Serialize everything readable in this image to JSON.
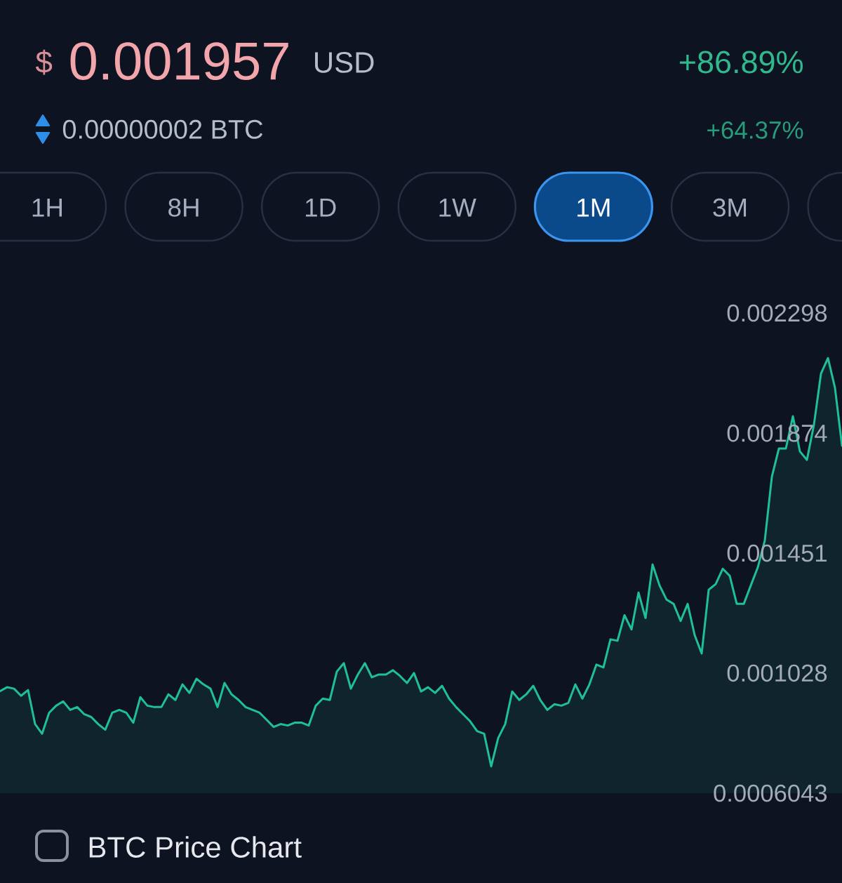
{
  "chart_data": {
    "type": "area",
    "title": "0.001957",
    "annotations": [
      "$",
      "USD",
      "+86.89%",
      "0.00000002 BTC",
      "+64.37%",
      "1H",
      "8H",
      "1D",
      "1W",
      "1M",
      "3M",
      "BTC Price Chart"
    ],
    "categories": [
      null,
      null,
      null,
      null,
      null,
      null,
      null,
      null,
      null,
      null,
      null,
      null,
      null,
      null,
      null,
      null,
      null,
      null,
      null,
      null,
      null,
      null,
      null,
      null,
      null,
      null,
      null,
      null,
      null,
      null,
      null,
      null,
      null,
      null,
      null,
      null,
      null,
      null,
      null,
      null,
      null,
      null,
      null,
      null,
      null,
      null,
      null,
      null,
      null,
      null,
      null,
      null,
      null,
      null,
      null,
      null,
      null,
      null,
      null,
      null,
      null,
      null,
      null,
      null,
      null,
      null,
      null,
      null,
      null,
      null,
      null,
      null,
      null,
      null,
      null,
      null,
      null,
      null,
      null,
      null,
      null,
      null,
      null,
      null,
      null,
      null,
      null,
      null,
      null,
      null,
      null,
      null,
      null,
      null,
      null,
      null,
      null,
      null,
      null,
      null,
      null,
      null,
      null,
      null,
      null,
      null,
      null,
      null,
      null,
      null,
      null,
      null,
      null,
      null,
      null,
      null,
      null,
      null,
      null,
      null,
      null
    ],
    "values": [
      0.000964,
      0.000978,
      0.000973,
      0.000948,
      0.000968,
      0.000848,
      0.000814,
      0.000888,
      0.000913,
      0.000928,
      0.000898,
      0.000908,
      0.000883,
      0.000873,
      0.000848,
      0.000828,
      0.000888,
      0.000898,
      0.000888,
      0.000853,
      0.000943,
      0.000913,
      0.000908,
      0.000908,
      0.000953,
      0.000933,
      0.000988,
      0.000958,
      0.001008,
      0.000988,
      0.000973,
      0.000908,
      0.000993,
      0.000953,
      0.000933,
      0.000908,
      0.000898,
      0.000888,
      0.000863,
      0.000838,
      0.000848,
      0.000843,
      0.000853,
      0.000853,
      0.000843,
      0.000913,
      0.000938,
      0.000933,
      0.001033,
      0.001063,
      0.000973,
      0.001023,
      0.001063,
      0.001013,
      0.001023,
      0.001023,
      0.001038,
      0.001018,
      0.000993,
      0.001028,
      0.000963,
      0.000978,
      0.000958,
      0.000983,
      0.000938,
      0.000908,
      0.000883,
      0.000858,
      0.000823,
      0.000814,
      0.000699,
      0.000799,
      0.000848,
      0.000963,
      0.000933,
      0.000953,
      0.000983,
      0.000933,
      0.000898,
      0.000918,
      0.000913,
      0.000923,
      0.000988,
      0.000938,
      0.000988,
      0.001058,
      0.001048,
      0.001147,
      0.001142,
      0.001232,
      0.001182,
      0.001312,
      0.001222,
      0.001411,
      0.001337,
      0.001287,
      0.001272,
      0.001212,
      0.001272,
      0.001162,
      0.001097,
      0.001322,
      0.001342,
      0.001396,
      0.001371,
      0.001272,
      0.001272,
      0.001337,
      0.001401,
      0.001496,
      0.00172,
      0.00182,
      0.00182,
      0.001934,
      0.00181,
      0.00178,
      0.001904,
      0.002084,
      0.002139,
      0.002034,
      0.00183
    ],
    "color": "#1fbf99",
    "ylim": [
      0.0006043,
      0.002298
    ],
    "yticks": [
      0.0006043,
      0.001028,
      0.001451,
      0.001874,
      0.002298
    ],
    "tick_labels": "y"
  }
}
